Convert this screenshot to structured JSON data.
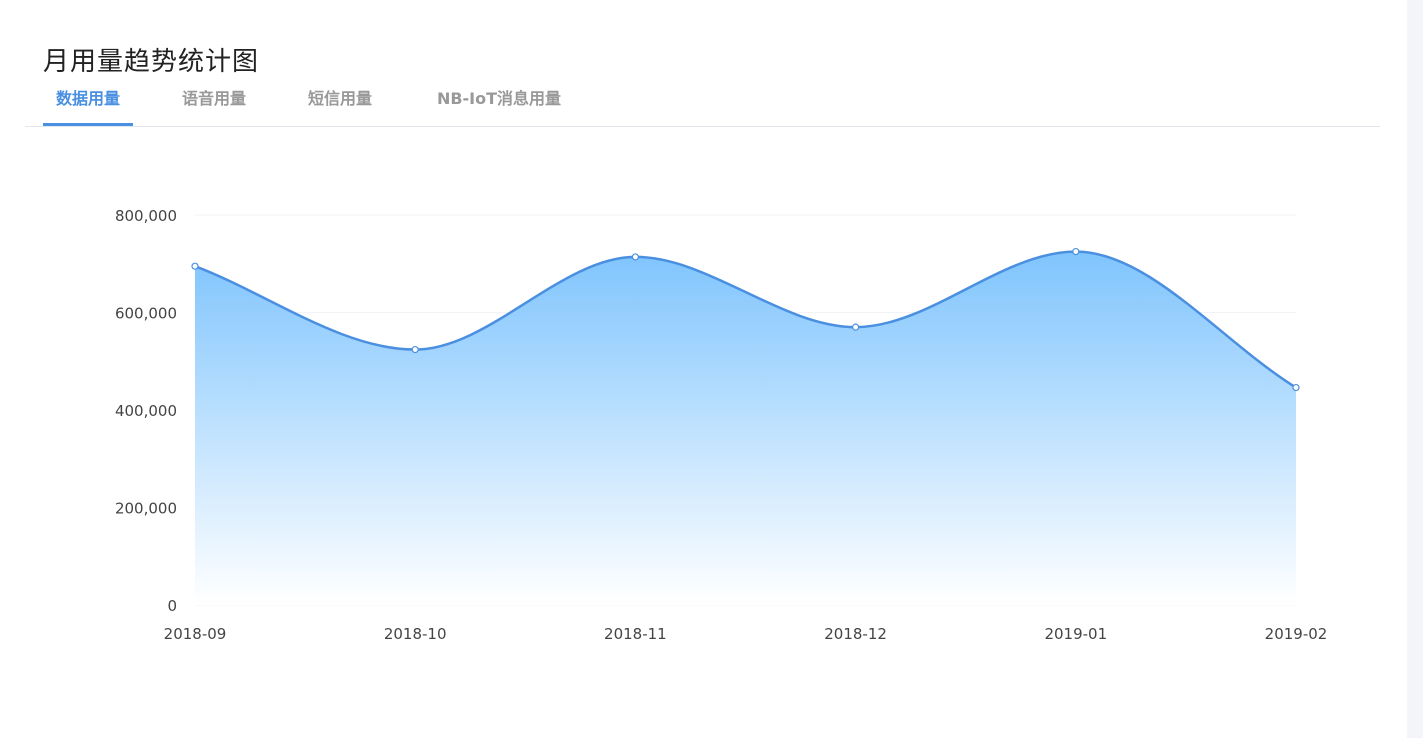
{
  "header": {
    "title": "月用量趋势统计图"
  },
  "tabs": [
    {
      "label": "数据用量",
      "active": true
    },
    {
      "label": "语音用量",
      "active": false
    },
    {
      "label": "短信用量",
      "active": false
    },
    {
      "label": "NB-IoT消息用量",
      "active": false
    }
  ],
  "colors": {
    "accent": "#4a90e2",
    "line": "#4a8fe0",
    "area_top": "#7fc4fd",
    "area_bottom": "#ffffff"
  },
  "chart_data": {
    "type": "area",
    "smooth": true,
    "categories": [
      "2018-09",
      "2018-10",
      "2018-11",
      "2018-12",
      "2019-01",
      "2019-02"
    ],
    "values": [
      695000,
      524000,
      714000,
      570000,
      725000,
      446000
    ],
    "y_ticks": [
      "0",
      "200,000",
      "400,000",
      "600,000",
      "800,000"
    ],
    "ylim": [
      0,
      800000
    ],
    "grid": true,
    "legend": "none"
  }
}
